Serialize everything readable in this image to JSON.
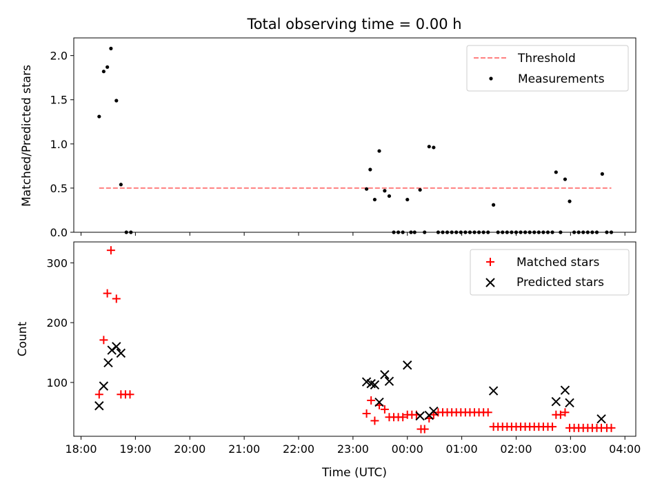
{
  "figure": {
    "title": "Total observing time = 0.00 h"
  },
  "chart_data": [
    {
      "type": "scatter",
      "ylabel": "Matched/Predicted stars",
      "ylim": [
        0,
        2.2
      ],
      "yticks": [
        0.0,
        0.5,
        1.0,
        1.5,
        2.0
      ],
      "ytick_labels": [
        "0.0",
        "0.5",
        "1.0",
        "1.5",
        "2.0"
      ],
      "grid": false,
      "legend_position": "top-right",
      "threshold": {
        "name": "Threshold",
        "value": 0.5,
        "x_start": "18:20",
        "x_end": "03:45",
        "color": "#ff7f7f",
        "style": "dashed"
      },
      "series": [
        {
          "name": "Measurements",
          "color": "#000000",
          "marker": "dot",
          "points": [
            [
              "18:20",
              1.31
            ],
            [
              "18:25",
              1.82
            ],
            [
              "18:29",
              1.87
            ],
            [
              "18:33",
              2.08
            ],
            [
              "18:39",
              1.49
            ],
            [
              "18:44",
              0.54
            ],
            [
              "18:50",
              0.0
            ],
            [
              "18:55",
              0.0
            ],
            [
              "23:15",
              0.49
            ],
            [
              "23:19",
              0.71
            ],
            [
              "23:24",
              0.37
            ],
            [
              "23:29",
              0.92
            ],
            [
              "23:35",
              0.47
            ],
            [
              "23:40",
              0.41
            ],
            [
              "23:45",
              0.0
            ],
            [
              "23:50",
              0.0
            ],
            [
              "23:55",
              0.0
            ],
            [
              "00:00",
              0.37
            ],
            [
              "00:04",
              0.0
            ],
            [
              "00:08",
              0.0
            ],
            [
              "00:14",
              0.48
            ],
            [
              "00:19",
              0.0
            ],
            [
              "00:24",
              0.97
            ],
            [
              "00:29",
              0.96
            ],
            [
              "00:34",
              0.0
            ],
            [
              "00:39",
              0.0
            ],
            [
              "00:44",
              0.0
            ],
            [
              "00:49",
              0.0
            ],
            [
              "00:54",
              0.0
            ],
            [
              "00:59",
              0.0
            ],
            [
              "01:04",
              0.0
            ],
            [
              "01:09",
              0.0
            ],
            [
              "01:14",
              0.0
            ],
            [
              "01:19",
              0.0
            ],
            [
              "01:24",
              0.0
            ],
            [
              "01:29",
              0.0
            ],
            [
              "01:35",
              0.31
            ],
            [
              "01:40",
              0.0
            ],
            [
              "01:45",
              0.0
            ],
            [
              "01:50",
              0.0
            ],
            [
              "01:55",
              0.0
            ],
            [
              "02:00",
              0.0
            ],
            [
              "02:05",
              0.0
            ],
            [
              "02:10",
              0.0
            ],
            [
              "02:15",
              0.0
            ],
            [
              "02:20",
              0.0
            ],
            [
              "02:25",
              0.0
            ],
            [
              "02:30",
              0.0
            ],
            [
              "02:35",
              0.0
            ],
            [
              "02:40",
              0.0
            ],
            [
              "02:44",
              0.68
            ],
            [
              "02:49",
              0.0
            ],
            [
              "02:54",
              0.6
            ],
            [
              "02:59",
              0.35
            ],
            [
              "03:04",
              0.0
            ],
            [
              "03:09",
              0.0
            ],
            [
              "03:14",
              0.0
            ],
            [
              "03:19",
              0.0
            ],
            [
              "03:24",
              0.0
            ],
            [
              "03:29",
              0.0
            ],
            [
              "03:35",
              0.66
            ],
            [
              "03:40",
              0.0
            ],
            [
              "03:45",
              0.0
            ]
          ]
        }
      ]
    },
    {
      "type": "scatter",
      "xlabel": "Time (UTC)",
      "ylabel": "Count",
      "ylim": [
        10,
        335
      ],
      "yticks": [
        100,
        200,
        300
      ],
      "ytick_labels": [
        "100",
        "200",
        "300"
      ],
      "xticks": [
        "18:00",
        "19:00",
        "20:00",
        "21:00",
        "22:00",
        "23:00",
        "00:00",
        "01:00",
        "02:00",
        "03:00",
        "04:00"
      ],
      "xlim": [
        "17:52",
        "04:12"
      ],
      "grid": false,
      "legend_position": "top-right",
      "series": [
        {
          "name": "Matched stars",
          "color": "#ff0000",
          "marker": "plus",
          "points": [
            [
              "18:20",
              80
            ],
            [
              "18:25",
              171
            ],
            [
              "18:29",
              249
            ],
            [
              "18:33",
              321
            ],
            [
              "18:39",
              240
            ],
            [
              "18:44",
              80
            ],
            [
              "18:49",
              80
            ],
            [
              "18:54",
              80
            ],
            [
              "23:15",
              48
            ],
            [
              "23:20",
              70
            ],
            [
              "23:24",
              36
            ],
            [
              "23:29",
              62
            ],
            [
              "23:35",
              55
            ],
            [
              "23:40",
              42
            ],
            [
              "23:45",
              42
            ],
            [
              "23:50",
              42
            ],
            [
              "23:55",
              42
            ],
            [
              "00:00",
              46
            ],
            [
              "00:05",
              46
            ],
            [
              "00:10",
              46
            ],
            [
              "00:15",
              22
            ],
            [
              "00:19",
              22
            ],
            [
              "00:24",
              40
            ],
            [
              "00:29",
              46
            ],
            [
              "00:34",
              50
            ],
            [
              "00:39",
              50
            ],
            [
              "00:44",
              50
            ],
            [
              "00:49",
              50
            ],
            [
              "00:54",
              50
            ],
            [
              "00:59",
              50
            ],
            [
              "01:04",
              50
            ],
            [
              "01:09",
              50
            ],
            [
              "01:14",
              50
            ],
            [
              "01:19",
              50
            ],
            [
              "01:24",
              50
            ],
            [
              "01:29",
              50
            ],
            [
              "01:35",
              26
            ],
            [
              "01:40",
              26
            ],
            [
              "01:45",
              26
            ],
            [
              "01:50",
              26
            ],
            [
              "01:55",
              26
            ],
            [
              "02:00",
              26
            ],
            [
              "02:05",
              26
            ],
            [
              "02:10",
              26
            ],
            [
              "02:15",
              26
            ],
            [
              "02:20",
              26
            ],
            [
              "02:25",
              26
            ],
            [
              "02:30",
              26
            ],
            [
              "02:35",
              26
            ],
            [
              "02:40",
              26
            ],
            [
              "02:44",
              46
            ],
            [
              "02:49",
              46
            ],
            [
              "02:54",
              50
            ],
            [
              "02:59",
              24
            ],
            [
              "03:04",
              24
            ],
            [
              "03:09",
              24
            ],
            [
              "03:14",
              24
            ],
            [
              "03:19",
              24
            ],
            [
              "03:24",
              24
            ],
            [
              "03:29",
              24
            ],
            [
              "03:34",
              24
            ],
            [
              "03:40",
              24
            ],
            [
              "03:45",
              24
            ]
          ]
        },
        {
          "name": "Predicted stars",
          "color": "#000000",
          "marker": "x",
          "points": [
            [
              "18:20",
              61
            ],
            [
              "18:25",
              94
            ],
            [
              "18:30",
              133
            ],
            [
              "18:34",
              154
            ],
            [
              "18:39",
              160
            ],
            [
              "18:44",
              149
            ],
            [
              "23:15",
              101
            ],
            [
              "23:20",
              98
            ],
            [
              "23:24",
              96
            ],
            [
              "23:29",
              67
            ],
            [
              "23:35",
              113
            ],
            [
              "23:40",
              102
            ],
            [
              "00:00",
              129
            ],
            [
              "00:14",
              44
            ],
            [
              "00:24",
              45
            ],
            [
              "00:29",
              52
            ],
            [
              "01:35",
              86
            ],
            [
              "02:44",
              68
            ],
            [
              "02:54",
              87
            ],
            [
              "02:59",
              66
            ],
            [
              "03:34",
              39
            ]
          ]
        }
      ]
    }
  ]
}
